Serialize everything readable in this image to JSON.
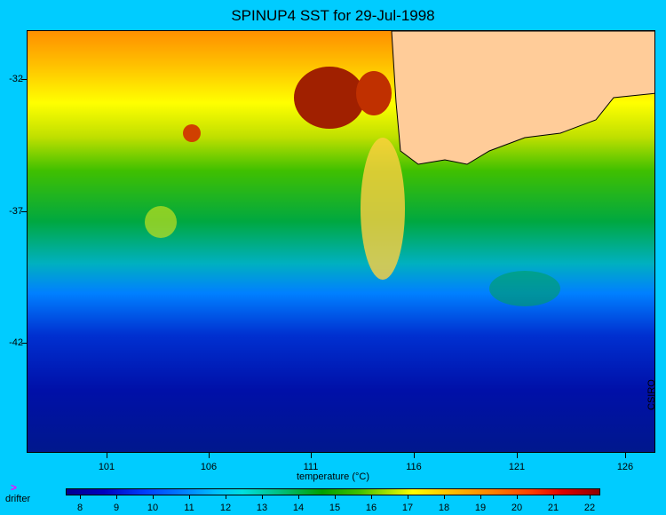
{
  "title": "SPINUP4 SST for 29-Jul-1998",
  "credit": "CSIRO",
  "x_axis": {
    "label": "temperature (°C)",
    "ticks": [
      "101",
      "106",
      "111",
      "116",
      "121",
      "126"
    ]
  },
  "y_axis": {
    "ticks": [
      "-32",
      "-37",
      "-42"
    ]
  },
  "colorbar": {
    "ticks": [
      "8",
      "9",
      "10",
      "11",
      "12",
      "13",
      "14",
      "15",
      "16",
      "17",
      "18",
      "19",
      "20",
      "21",
      "22"
    ]
  },
  "legend": {
    "marker": ">",
    "label": "drifter",
    "marker_color": "#ff00ff"
  },
  "colors": {
    "background": "#00ccff",
    "land": "#ffcc99"
  }
}
